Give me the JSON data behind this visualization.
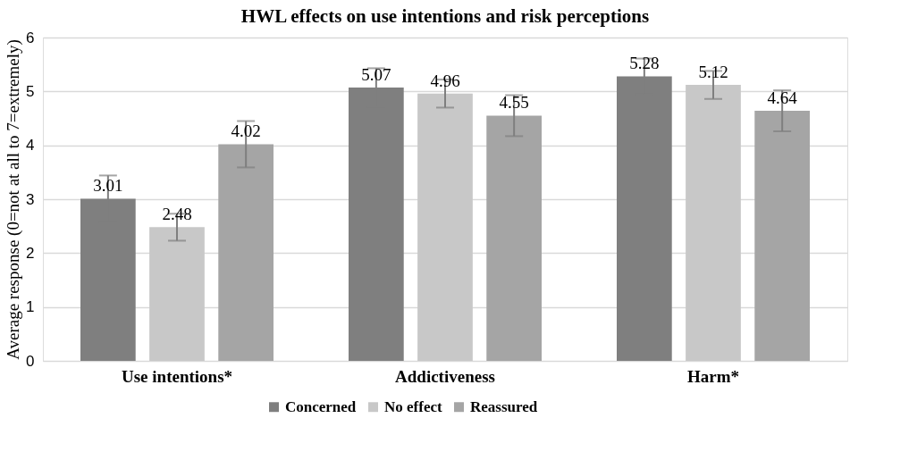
{
  "chart_data": {
    "type": "bar",
    "title": "HWL effects on use intentions and risk perceptions",
    "ylabel": "Average response (0=not at all to 7=extremely)",
    "categories": [
      "Use intentions*",
      "Addictiveness",
      "Harm*"
    ],
    "series": [
      {
        "name": "Concerned",
        "color": "#7f7f7f",
        "values": [
          3.01,
          5.07,
          5.28
        ],
        "errors": [
          0.43,
          0.36,
          0.33
        ]
      },
      {
        "name": "No effect",
        "color": "#c8c8c8",
        "values": [
          2.48,
          4.96,
          5.12
        ],
        "errors": [
          0.25,
          0.26,
          0.26
        ]
      },
      {
        "name": "Reassured",
        "color": "#a5a5a5",
        "values": [
          4.02,
          4.55,
          4.64
        ],
        "errors": [
          0.43,
          0.38,
          0.38
        ]
      }
    ],
    "ylim": [
      0,
      6
    ],
    "yticks": [
      0,
      1,
      2,
      3,
      4,
      5,
      6
    ],
    "grid": "y",
    "legend": "bottom",
    "data_labels": true
  }
}
